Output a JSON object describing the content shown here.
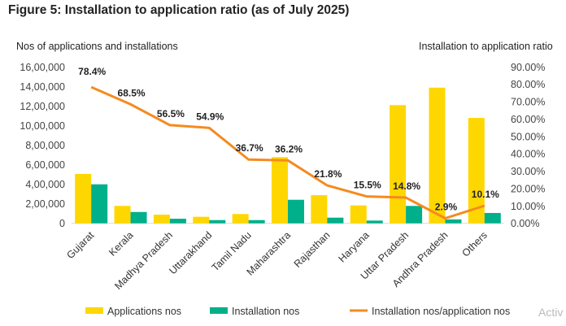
{
  "chart_data": {
    "type": "bar",
    "title": "Figure 5: Installation to application ratio (as of July 2025)",
    "ylabel_left": "Nos of applications and installations",
    "ylabel_right": "Installation to application ratio",
    "categories": [
      "Gujarat",
      "Kerala",
      "Madhya Pradesh",
      "Uttarakhand",
      "Tamil Nadu",
      "Maharashtra",
      "Rajasthan",
      "Haryana",
      "Uttar Pradesh",
      "Andhra Pradesh",
      "Others"
    ],
    "ylim_left": [
      0,
      1600000
    ],
    "ylim_right": [
      0,
      90
    ],
    "left_ticks": [
      "0",
      "2,00,000",
      "4,00,000",
      "6,00,000",
      "8,00,000",
      "10,00,000",
      "12,00,000",
      "14,00,000",
      "16,00,000"
    ],
    "right_ticks": [
      "0.00%",
      "10.00%",
      "20.00%",
      "30.00%",
      "40.00%",
      "50.00%",
      "60.00%",
      "70.00%",
      "80.00%",
      "90.00%"
    ],
    "series": [
      {
        "name": "Applications nos",
        "type": "bar",
        "axis": "left",
        "color": "#FFD700",
        "values": [
          505000,
          178000,
          89000,
          67000,
          95000,
          677000,
          288000,
          183000,
          1209000,
          1388000,
          1078000
        ]
      },
      {
        "name": "Installation nos",
        "type": "bar",
        "axis": "left",
        "color": "#00B08A",
        "values": [
          399000,
          116000,
          47000,
          33000,
          33000,
          241000,
          58000,
          28000,
          178000,
          40000,
          106000
        ]
      },
      {
        "name": "Installation nos/application nos",
        "type": "line",
        "axis": "right",
        "color": "#F58A1F",
        "values": [
          78.4,
          68.5,
          56.5,
          54.9,
          36.7,
          36.2,
          21.8,
          15.5,
          14.8,
          2.9,
          10.1
        ],
        "labels": [
          "78.4%",
          "68.5%",
          "56.5%",
          "54.9%",
          "36.7%",
          "36.2%",
          "21.8%",
          "15.5%",
          "14.8%",
          "2.9%",
          "10.1%"
        ]
      }
    ],
    "grid": false,
    "legend": "bottom"
  },
  "watermark": "Activ"
}
